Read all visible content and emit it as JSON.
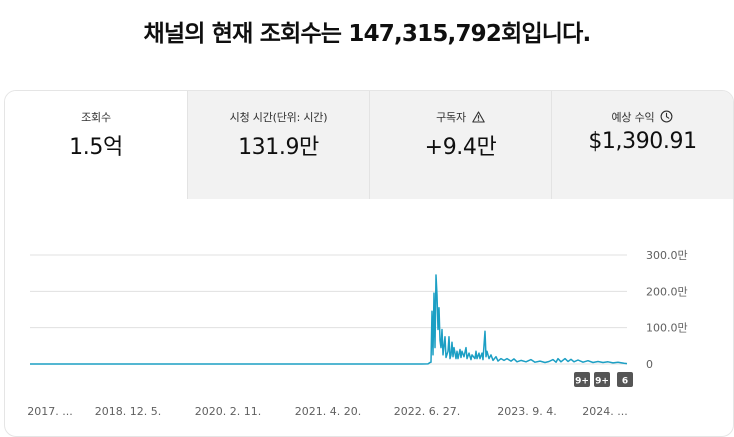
{
  "header": {
    "title": "채널의 현재 조회수는 147,315,792회입니다."
  },
  "tabs": [
    {
      "label": "조회수",
      "value": "1.5억",
      "icon": "",
      "active": true
    },
    {
      "label": "시청 시간(단위: 시간)",
      "value": "131.9만",
      "icon": ""
    },
    {
      "label": "구독자",
      "value": "+9.4만",
      "icon": "warning-triangle-icon"
    },
    {
      "label": "예상 수익",
      "value": "$1,390.91",
      "icon": "clock-icon"
    }
  ],
  "colors": {
    "line": "#1c9fc4",
    "grid": "#e0e0e0",
    "badge": "#555555"
  },
  "chart_data": {
    "type": "line",
    "x_tick_labels": [
      "2017. ...",
      "2018. 12. 5.",
      "2020. 2. 11.",
      "2021. 4. 20.",
      "2022. 6. 27.",
      "2023. 9. 4.",
      "2024. ..."
    ],
    "y_tick_labels": [
      "300.0만",
      "200.0만",
      "100.0만",
      "0"
    ],
    "ylim": [
      0,
      3000000
    ],
    "grid": true,
    "series": [
      {
        "values": [
          [
            0,
            0
          ],
          [
            392,
            0
          ],
          [
            398,
            2000
          ],
          [
            400,
            40000
          ],
          [
            401,
            50000
          ],
          [
            402,
            1450000
          ],
          [
            403,
            250000
          ],
          [
            404,
            1950000
          ],
          [
            405,
            450000
          ],
          [
            406,
            2450000
          ],
          [
            407,
            1900000
          ],
          [
            408,
            950000
          ],
          [
            409,
            1550000
          ],
          [
            410,
            650000
          ],
          [
            411,
            450000
          ],
          [
            412,
            950000
          ],
          [
            413,
            250000
          ],
          [
            415,
            750000
          ],
          [
            416,
            180000
          ],
          [
            418,
            350000
          ],
          [
            419,
            750000
          ],
          [
            420,
            150000
          ],
          [
            421,
            250000
          ],
          [
            422,
            600000
          ],
          [
            423,
            200000
          ],
          [
            424,
            450000
          ],
          [
            426,
            150000
          ],
          [
            427,
            350000
          ],
          [
            428,
            150000
          ],
          [
            430,
            400000
          ],
          [
            431,
            180000
          ],
          [
            432,
            350000
          ],
          [
            434,
            200000
          ],
          [
            436,
            450000
          ],
          [
            437,
            150000
          ],
          [
            439,
            300000
          ],
          [
            441,
            120000
          ],
          [
            442,
            250000
          ],
          [
            445,
            150000
          ],
          [
            446,
            350000
          ],
          [
            447,
            150000
          ],
          [
            449,
            300000
          ],
          [
            450,
            150000
          ],
          [
            452,
            300000
          ],
          [
            453,
            120000
          ],
          [
            455,
            900000
          ],
          [
            456,
            200000
          ],
          [
            457,
            350000
          ],
          [
            459,
            150000
          ],
          [
            461,
            250000
          ],
          [
            463,
            100000
          ],
          [
            466,
            200000
          ],
          [
            468,
            80000
          ],
          [
            471,
            150000
          ],
          [
            474,
            100000
          ],
          [
            477,
            150000
          ],
          [
            481,
            80000
          ],
          [
            484,
            140000
          ],
          [
            487,
            60000
          ],
          [
            491,
            100000
          ],
          [
            496,
            60000
          ],
          [
            501,
            120000
          ],
          [
            505,
            50000
          ],
          [
            510,
            80000
          ],
          [
            515,
            40000
          ],
          [
            519,
            70000
          ],
          [
            523,
            120000
          ],
          [
            526,
            50000
          ],
          [
            528,
            150000
          ],
          [
            531,
            60000
          ],
          [
            535,
            150000
          ],
          [
            538,
            70000
          ],
          [
            541,
            130000
          ],
          [
            544,
            60000
          ],
          [
            548,
            110000
          ],
          [
            553,
            50000
          ],
          [
            558,
            90000
          ],
          [
            563,
            40000
          ],
          [
            568,
            70000
          ],
          [
            573,
            40000
          ],
          [
            578,
            60000
          ],
          [
            583,
            30000
          ],
          [
            588,
            50000
          ],
          [
            594,
            20000
          ],
          [
            597,
            10000
          ]
        ]
      }
    ],
    "badges": [
      "9+",
      "9+",
      "6"
    ]
  }
}
